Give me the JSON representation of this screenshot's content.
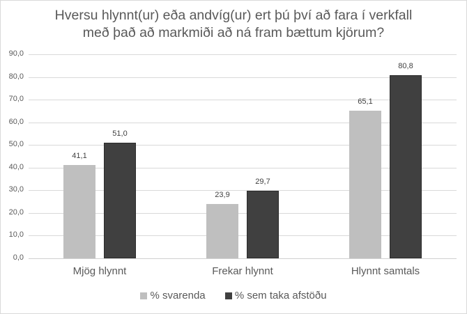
{
  "chart_data": {
    "type": "bar",
    "title": "Hversu hlynnt(ur) eða andvíg(ur) ert þú því að fara í verkfall með það að markmiði að ná fram bættum kjörum?",
    "title_lines": [
      "Hversu hlynnt(ur) eða andvíg(ur) ert þú því að fara í verkfall",
      "með það að markmiði að ná fram bættum kjörum?"
    ],
    "xlabel": "",
    "ylabel": "",
    "categories": [
      "Mjög hlynnt",
      "Frekar hlynnt",
      "Hlynnt samtals"
    ],
    "series": [
      {
        "name": "% svarenda",
        "color": "#bfbfbf",
        "values": [
          41.1,
          23.9,
          65.1
        ],
        "labels": [
          "41,1",
          "23,9",
          "65,1"
        ]
      },
      {
        "name": "% sem taka afstöðu",
        "color": "#404040",
        "values": [
          51.0,
          29.7,
          80.8
        ],
        "labels": [
          "51,0",
          "29,7",
          "80,8"
        ]
      }
    ],
    "ylim": [
      0,
      90
    ],
    "yticks": [
      0,
      10,
      20,
      30,
      40,
      50,
      60,
      70,
      80,
      90
    ],
    "ytick_labels": [
      "0,0",
      "10,0",
      "20,0",
      "30,0",
      "40,0",
      "50,0",
      "60,0",
      "70,0",
      "80,0",
      "90,0"
    ],
    "grid": true,
    "legend_position": "bottom",
    "data_labels": true
  }
}
